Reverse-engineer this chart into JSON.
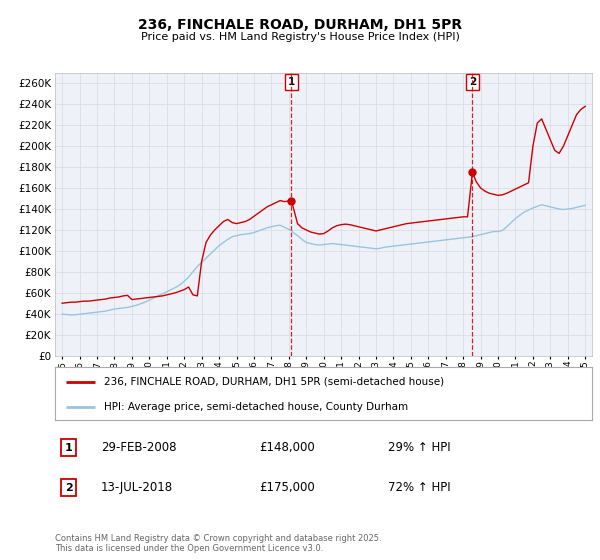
{
  "title": "236, FINCHALE ROAD, DURHAM, DH1 5PR",
  "subtitle": "Price paid vs. HM Land Registry's House Price Index (HPI)",
  "hpi_label": "HPI: Average price, semi-detached house, County Durham",
  "property_label": "236, FINCHALE ROAD, DURHAM, DH1 5PR (semi-detached house)",
  "red_color": "#cc0000",
  "blue_color": "#99c4e0",
  "bg_color": "#ffffff",
  "plot_bg_color": "#eef2f8",
  "grid_color": "#d8dde8",
  "annotation1_date": "29-FEB-2008",
  "annotation1_price": "£148,000",
  "annotation1_hpi": "29% ↑ HPI",
  "annotation2_date": "13-JUL-2018",
  "annotation2_price": "£175,000",
  "annotation2_hpi": "72% ↑ HPI",
  "vline1_x": 2008.15,
  "vline2_x": 2018.53,
  "marker1_x": 2008.15,
  "marker1_y": 148000,
  "marker2_x": 2018.53,
  "marker2_y": 175000,
  "ylim": [
    0,
    270000
  ],
  "xlim_left": 1994.6,
  "xlim_right": 2025.4,
  "footer": "Contains HM Land Registry data © Crown copyright and database right 2025.\nThis data is licensed under the Open Government Licence v3.0.",
  "hpi_data": [
    [
      1995.0,
      39500
    ],
    [
      1995.25,
      39200
    ],
    [
      1995.5,
      38800
    ],
    [
      1995.75,
      39000
    ],
    [
      1996.0,
      39500
    ],
    [
      1996.25,
      40000
    ],
    [
      1996.5,
      40500
    ],
    [
      1996.75,
      41000
    ],
    [
      1997.0,
      41500
    ],
    [
      1997.25,
      42000
    ],
    [
      1997.5,
      42500
    ],
    [
      1997.75,
      43500
    ],
    [
      1998.0,
      44500
    ],
    [
      1998.25,
      45000
    ],
    [
      1998.5,
      45500
    ],
    [
      1998.75,
      46000
    ],
    [
      1999.0,
      47000
    ],
    [
      1999.25,
      48000
    ],
    [
      1999.5,
      49500
    ],
    [
      1999.75,
      51000
    ],
    [
      2000.0,
      53000
    ],
    [
      2000.25,
      55000
    ],
    [
      2000.5,
      57000
    ],
    [
      2000.75,
      59000
    ],
    [
      2001.0,
      61000
    ],
    [
      2001.25,
      63000
    ],
    [
      2001.5,
      65000
    ],
    [
      2001.75,
      67500
    ],
    [
      2002.0,
      71000
    ],
    [
      2002.25,
      75000
    ],
    [
      2002.5,
      80000
    ],
    [
      2002.75,
      85000
    ],
    [
      2003.0,
      89000
    ],
    [
      2003.25,
      93000
    ],
    [
      2003.5,
      97000
    ],
    [
      2003.75,
      101000
    ],
    [
      2004.0,
      105000
    ],
    [
      2004.25,
      108000
    ],
    [
      2004.5,
      111000
    ],
    [
      2004.75,
      113500
    ],
    [
      2005.0,
      114500
    ],
    [
      2005.25,
      115500
    ],
    [
      2005.5,
      116000
    ],
    [
      2005.75,
      116500
    ],
    [
      2006.0,
      117500
    ],
    [
      2006.25,
      119000
    ],
    [
      2006.5,
      120500
    ],
    [
      2006.75,
      122000
    ],
    [
      2007.0,
      123000
    ],
    [
      2007.25,
      124000
    ],
    [
      2007.5,
      124500
    ],
    [
      2007.75,
      122500
    ],
    [
      2008.0,
      120500
    ],
    [
      2008.15,
      119500
    ],
    [
      2008.25,
      117500
    ],
    [
      2008.5,
      114500
    ],
    [
      2008.75,
      111000
    ],
    [
      2009.0,
      108000
    ],
    [
      2009.25,
      107000
    ],
    [
      2009.5,
      106000
    ],
    [
      2009.75,
      105500
    ],
    [
      2010.0,
      106000
    ],
    [
      2010.25,
      106500
    ],
    [
      2010.5,
      107000
    ],
    [
      2010.75,
      106500
    ],
    [
      2011.0,
      106000
    ],
    [
      2011.25,
      105500
    ],
    [
      2011.5,
      105000
    ],
    [
      2011.75,
      104500
    ],
    [
      2012.0,
      104000
    ],
    [
      2012.25,
      103500
    ],
    [
      2012.5,
      103000
    ],
    [
      2012.75,
      102500
    ],
    [
      2013.0,
      102000
    ],
    [
      2013.25,
      102500
    ],
    [
      2013.5,
      103500
    ],
    [
      2013.75,
      104000
    ],
    [
      2014.0,
      104500
    ],
    [
      2014.25,
      105000
    ],
    [
      2014.5,
      105500
    ],
    [
      2014.75,
      106000
    ],
    [
      2015.0,
      106500
    ],
    [
      2015.25,
      107000
    ],
    [
      2015.5,
      107500
    ],
    [
      2015.75,
      108000
    ],
    [
      2016.0,
      108500
    ],
    [
      2016.25,
      109000
    ],
    [
      2016.5,
      109500
    ],
    [
      2016.75,
      110000
    ],
    [
      2017.0,
      110500
    ],
    [
      2017.25,
      111000
    ],
    [
      2017.5,
      111500
    ],
    [
      2017.75,
      112000
    ],
    [
      2018.0,
      112500
    ],
    [
      2018.25,
      113000
    ],
    [
      2018.53,
      113500
    ],
    [
      2018.75,
      114500
    ],
    [
      2019.0,
      115500
    ],
    [
      2019.25,
      116500
    ],
    [
      2019.5,
      117500
    ],
    [
      2019.75,
      118500
    ],
    [
      2020.0,
      118500
    ],
    [
      2020.25,
      119500
    ],
    [
      2020.5,
      123000
    ],
    [
      2020.75,
      127000
    ],
    [
      2021.0,
      131000
    ],
    [
      2021.25,
      134000
    ],
    [
      2021.5,
      137000
    ],
    [
      2021.75,
      139000
    ],
    [
      2022.0,
      141000
    ],
    [
      2022.25,
      142500
    ],
    [
      2022.5,
      144000
    ],
    [
      2022.75,
      143000
    ],
    [
      2023.0,
      142000
    ],
    [
      2023.25,
      141000
    ],
    [
      2023.5,
      140000
    ],
    [
      2023.75,
      139500
    ],
    [
      2024.0,
      140000
    ],
    [
      2024.25,
      140500
    ],
    [
      2024.5,
      141500
    ],
    [
      2024.75,
      142500
    ],
    [
      2025.0,
      143500
    ]
  ],
  "price_data": [
    [
      1995.0,
      50000
    ],
    [
      1995.25,
      50500
    ],
    [
      1995.5,
      51000
    ],
    [
      1995.75,
      51000
    ],
    [
      1996.0,
      51500
    ],
    [
      1996.25,
      52000
    ],
    [
      1996.5,
      52000
    ],
    [
      1996.75,
      52500
    ],
    [
      1997.0,
      53000
    ],
    [
      1997.25,
      53500
    ],
    [
      1997.5,
      54000
    ],
    [
      1997.75,
      55000
    ],
    [
      1998.0,
      55500
    ],
    [
      1998.25,
      56000
    ],
    [
      1998.5,
      57000
    ],
    [
      1998.75,
      57500
    ],
    [
      1999.0,
      53500
    ],
    [
      1999.25,
      54000
    ],
    [
      1999.5,
      54500
    ],
    [
      1999.75,
      55000
    ],
    [
      2000.0,
      55500
    ],
    [
      2000.25,
      56000
    ],
    [
      2000.5,
      56500
    ],
    [
      2000.75,
      57000
    ],
    [
      2001.0,
      58000
    ],
    [
      2001.25,
      59000
    ],
    [
      2001.5,
      60000
    ],
    [
      2001.75,
      61500
    ],
    [
      2002.0,
      63000
    ],
    [
      2002.25,
      65500
    ],
    [
      2002.5,
      58000
    ],
    [
      2002.75,
      57000
    ],
    [
      2003.0,
      90000
    ],
    [
      2003.25,
      108000
    ],
    [
      2003.5,
      115000
    ],
    [
      2003.75,
      120000
    ],
    [
      2004.0,
      124000
    ],
    [
      2004.25,
      128000
    ],
    [
      2004.5,
      130000
    ],
    [
      2004.75,
      127000
    ],
    [
      2005.0,
      126000
    ],
    [
      2005.25,
      127000
    ],
    [
      2005.5,
      128000
    ],
    [
      2005.75,
      130000
    ],
    [
      2006.0,
      133000
    ],
    [
      2006.25,
      136000
    ],
    [
      2006.5,
      139000
    ],
    [
      2006.75,
      142000
    ],
    [
      2007.0,
      144000
    ],
    [
      2007.25,
      146000
    ],
    [
      2007.5,
      148000
    ],
    [
      2007.75,
      147000
    ],
    [
      2008.15,
      148000
    ],
    [
      2008.5,
      126000
    ],
    [
      2008.75,
      122000
    ],
    [
      2009.0,
      120000
    ],
    [
      2009.25,
      118000
    ],
    [
      2009.5,
      117000
    ],
    [
      2009.75,
      116000
    ],
    [
      2010.0,
      116500
    ],
    [
      2010.25,
      119000
    ],
    [
      2010.5,
      122000
    ],
    [
      2010.75,
      124000
    ],
    [
      2011.0,
      125000
    ],
    [
      2011.25,
      125500
    ],
    [
      2011.5,
      125000
    ],
    [
      2011.75,
      124000
    ],
    [
      2012.0,
      123000
    ],
    [
      2012.25,
      122000
    ],
    [
      2012.5,
      121000
    ],
    [
      2012.75,
      120000
    ],
    [
      2013.0,
      119000
    ],
    [
      2013.25,
      120000
    ],
    [
      2013.5,
      121000
    ],
    [
      2013.75,
      122000
    ],
    [
      2014.0,
      123000
    ],
    [
      2014.25,
      124000
    ],
    [
      2014.5,
      125000
    ],
    [
      2014.75,
      126000
    ],
    [
      2015.0,
      126500
    ],
    [
      2015.25,
      127000
    ],
    [
      2015.5,
      127500
    ],
    [
      2015.75,
      128000
    ],
    [
      2016.0,
      128500
    ],
    [
      2016.25,
      129000
    ],
    [
      2016.5,
      129500
    ],
    [
      2016.75,
      130000
    ],
    [
      2017.0,
      130500
    ],
    [
      2017.25,
      131000
    ],
    [
      2017.5,
      131500
    ],
    [
      2017.75,
      132000
    ],
    [
      2018.0,
      132500
    ],
    [
      2018.25,
      132500
    ],
    [
      2018.53,
      175000
    ],
    [
      2018.75,
      166000
    ],
    [
      2019.0,
      160000
    ],
    [
      2019.25,
      157000
    ],
    [
      2019.5,
      155000
    ],
    [
      2019.75,
      154000
    ],
    [
      2020.0,
      153000
    ],
    [
      2020.25,
      153500
    ],
    [
      2020.5,
      155000
    ],
    [
      2020.75,
      157000
    ],
    [
      2021.0,
      159000
    ],
    [
      2021.25,
      161000
    ],
    [
      2021.5,
      163000
    ],
    [
      2021.75,
      165000
    ],
    [
      2022.0,
      200000
    ],
    [
      2022.25,
      222000
    ],
    [
      2022.5,
      226000
    ],
    [
      2022.75,
      216000
    ],
    [
      2023.0,
      206000
    ],
    [
      2023.25,
      196000
    ],
    [
      2023.5,
      193000
    ],
    [
      2023.75,
      200000
    ],
    [
      2024.0,
      210000
    ],
    [
      2024.25,
      220000
    ],
    [
      2024.5,
      230000
    ],
    [
      2024.75,
      235000
    ],
    [
      2025.0,
      238000
    ]
  ]
}
